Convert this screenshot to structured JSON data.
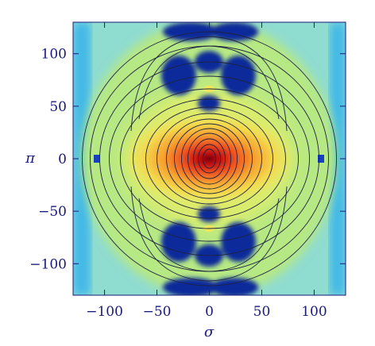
{
  "chart_data": {
    "type": "heatmap",
    "title": "",
    "xlabel": "σ",
    "ylabel": "π",
    "xlim": [
      -130,
      130
    ],
    "ylim": [
      -130,
      130
    ],
    "xticks": [
      -100,
      -50,
      0,
      50,
      100
    ],
    "yticks": [
      -100,
      -50,
      0,
      50,
      100
    ],
    "xtick_labels": [
      "−100",
      "−50",
      "0",
      "50",
      "100"
    ],
    "ytick_labels": [
      "−100",
      "−50",
      "0",
      "50",
      "100"
    ],
    "colormap": "jet",
    "overlay": "contour lines",
    "peak": {
      "sigma": 0,
      "pi": 0
    },
    "grid": false
  },
  "colors": {
    "axis": "#1a1a7a",
    "contour": "#1d2340",
    "background_field": "#b8ea80",
    "low_blob": "#0a2a9a"
  }
}
